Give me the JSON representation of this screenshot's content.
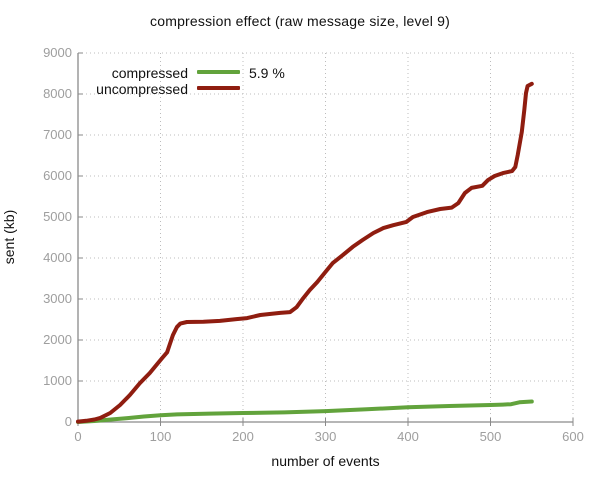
{
  "chart_data": {
    "type": "line",
    "title": "compression effect (raw message size, level 9)",
    "xlabel": "number of events",
    "ylabel": "sent (kb)",
    "xlim": [
      0,
      600
    ],
    "ylim": [
      0,
      9000
    ],
    "x_ticks": [
      0,
      100,
      200,
      300,
      400,
      500,
      600
    ],
    "y_ticks": [
      0,
      1000,
      2000,
      3000,
      4000,
      5000,
      6000,
      7000,
      8000,
      9000
    ],
    "grid": true,
    "grid_style": "dotted",
    "legend_position": "top-left-inside",
    "colors": {
      "compressed": "#62a33c",
      "uncompressed": "#8f1d10",
      "grid": "#bcbcbc",
      "axis": "#8a8a8a",
      "tick_text": "#9e9e9e"
    },
    "series": [
      {
        "name": "compressed",
        "note": "5.9 %",
        "color": "#62a33c",
        "points": [
          [
            0,
            0
          ],
          [
            20,
            25
          ],
          [
            40,
            60
          ],
          [
            60,
            95
          ],
          [
            80,
            135
          ],
          [
            100,
            165
          ],
          [
            120,
            185
          ],
          [
            140,
            195
          ],
          [
            160,
            205
          ],
          [
            200,
            220
          ],
          [
            250,
            235
          ],
          [
            300,
            265
          ],
          [
            350,
            310
          ],
          [
            400,
            360
          ],
          [
            450,
            390
          ],
          [
            500,
            415
          ],
          [
            515,
            425
          ],
          [
            525,
            435
          ],
          [
            535,
            480
          ],
          [
            550,
            500
          ]
        ]
      },
      {
        "name": "uncompressed",
        "note": "",
        "color": "#8f1d10",
        "points": [
          [
            0,
            10
          ],
          [
            10,
            30
          ],
          [
            20,
            60
          ],
          [
            27,
            100
          ],
          [
            39,
            220
          ],
          [
            51,
            415
          ],
          [
            63,
            660
          ],
          [
            75,
            950
          ],
          [
            87,
            1195
          ],
          [
            95,
            1390
          ],
          [
            102,
            1560
          ],
          [
            108,
            1700
          ],
          [
            111,
            1880
          ],
          [
            115,
            2120
          ],
          [
            120,
            2320
          ],
          [
            124,
            2400
          ],
          [
            132,
            2440
          ],
          [
            152,
            2445
          ],
          [
            172,
            2465
          ],
          [
            192,
            2510
          ],
          [
            205,
            2535
          ],
          [
            221,
            2610
          ],
          [
            245,
            2660
          ],
          [
            257,
            2680
          ],
          [
            265,
            2800
          ],
          [
            273,
            3020
          ],
          [
            281,
            3220
          ],
          [
            290,
            3415
          ],
          [
            300,
            3660
          ],
          [
            309,
            3880
          ],
          [
            321,
            4070
          ],
          [
            333,
            4270
          ],
          [
            345,
            4440
          ],
          [
            358,
            4610
          ],
          [
            370,
            4730
          ],
          [
            382,
            4800
          ],
          [
            398,
            4880
          ],
          [
            406,
            5000
          ],
          [
            423,
            5120
          ],
          [
            439,
            5195
          ],
          [
            453,
            5230
          ],
          [
            461,
            5340
          ],
          [
            469,
            5585
          ],
          [
            477,
            5710
          ],
          [
            490,
            5760
          ],
          [
            497,
            5900
          ],
          [
            505,
            6000
          ],
          [
            515,
            6070
          ],
          [
            526,
            6120
          ],
          [
            530,
            6220
          ],
          [
            533,
            6510
          ],
          [
            538,
            7075
          ],
          [
            541,
            7610
          ],
          [
            543,
            8025
          ],
          [
            545,
            8195
          ],
          [
            550,
            8250
          ]
        ]
      }
    ]
  }
}
